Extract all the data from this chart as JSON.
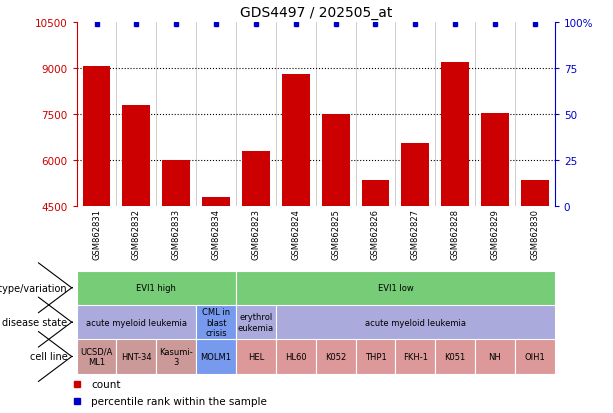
{
  "title": "GDS4497 / 202505_at",
  "samples": [
    "GSM862831",
    "GSM862832",
    "GSM862833",
    "GSM862834",
    "GSM862823",
    "GSM862824",
    "GSM862825",
    "GSM862826",
    "GSM862827",
    "GSM862828",
    "GSM862829",
    "GSM862830"
  ],
  "bar_values": [
    9050,
    7800,
    6000,
    4800,
    6300,
    8800,
    7500,
    5350,
    6550,
    9200,
    7550,
    5350
  ],
  "bar_color": "#cc0000",
  "percentile_color": "#0000cc",
  "ylim_left": [
    4500,
    10500
  ],
  "ylim_right": [
    0,
    100
  ],
  "yticks_left": [
    4500,
    6000,
    7500,
    9000,
    10500
  ],
  "yticks_right": [
    0,
    25,
    50,
    75,
    100
  ],
  "ytick_labels_left": [
    "4500",
    "6000",
    "7500",
    "9000",
    "10500"
  ],
  "ytick_labels_right": [
    "0",
    "25",
    "50",
    "75",
    "100%"
  ],
  "grid_values": [
    6000,
    7500,
    9000
  ],
  "genotype_groups": [
    {
      "label": "EVI1 high",
      "start": 0,
      "end": 4,
      "color": "#77cc77"
    },
    {
      "label": "EVI1 low",
      "start": 4,
      "end": 12,
      "color": "#77cc77"
    }
  ],
  "disease_groups": [
    {
      "label": "acute myeloid leukemia",
      "start": 0,
      "end": 3,
      "color": "#aaaadd"
    },
    {
      "label": "CML in\nblast\ncrisis",
      "start": 3,
      "end": 4,
      "color": "#7799ee"
    },
    {
      "label": "erythrol\neukemia",
      "start": 4,
      "end": 5,
      "color": "#aaaadd"
    },
    {
      "label": "acute myeloid leukemia",
      "start": 5,
      "end": 12,
      "color": "#aaaadd"
    }
  ],
  "cell_line_groups": [
    {
      "label": "UCSD/A\nML1",
      "start": 0,
      "end": 1,
      "color": "#cc9999"
    },
    {
      "label": "HNT-34",
      "start": 1,
      "end": 2,
      "color": "#cc9999"
    },
    {
      "label": "Kasumi-\n3",
      "start": 2,
      "end": 3,
      "color": "#cc9999"
    },
    {
      "label": "MOLM1",
      "start": 3,
      "end": 4,
      "color": "#7799ee"
    },
    {
      "label": "HEL",
      "start": 4,
      "end": 5,
      "color": "#dd9999"
    },
    {
      "label": "HL60",
      "start": 5,
      "end": 6,
      "color": "#dd9999"
    },
    {
      "label": "K052",
      "start": 6,
      "end": 7,
      "color": "#dd9999"
    },
    {
      "label": "THP1",
      "start": 7,
      "end": 8,
      "color": "#dd9999"
    },
    {
      "label": "FKH-1",
      "start": 8,
      "end": 9,
      "color": "#dd9999"
    },
    {
      "label": "K051",
      "start": 9,
      "end": 10,
      "color": "#dd9999"
    },
    {
      "label": "NH",
      "start": 10,
      "end": 11,
      "color": "#dd9999"
    },
    {
      "label": "OIH1",
      "start": 11,
      "end": 12,
      "color": "#dd9999"
    }
  ],
  "row_label_texts": [
    "genotype/variation",
    "disease state",
    "cell line"
  ],
  "legend_items": [
    {
      "label": "count",
      "color": "#cc0000"
    },
    {
      "label": "percentile rank within the sample",
      "color": "#0000cc"
    }
  ]
}
